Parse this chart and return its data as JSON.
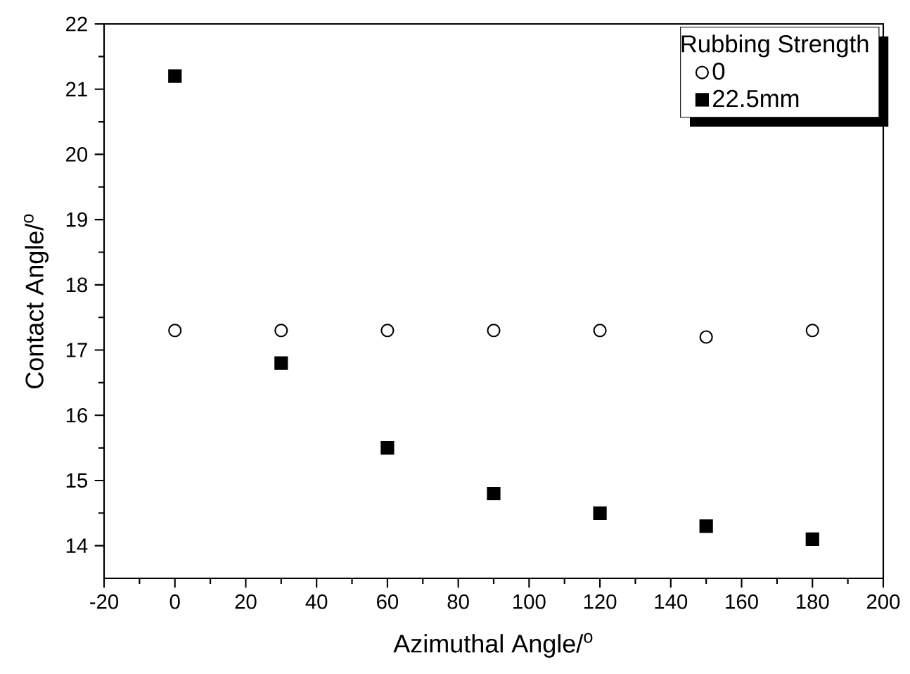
{
  "chart_data": {
    "type": "scatter",
    "xlabel": "Azimuthal Angle/$^{o}$",
    "ylabel": "Contact Angle/$^{o}$",
    "legend_title": "Rubbing Strength",
    "x": [
      0,
      30,
      60,
      90,
      120,
      150,
      180
    ],
    "series": [
      {
        "name": "0",
        "color": "#000000",
        "marker": "circle",
        "values": [
          17.3,
          17.3,
          17.3,
          17.3,
          17.3,
          17.2,
          17.3
        ]
      },
      {
        "name": "22.5mm",
        "color": "#000000",
        "marker": "square",
        "values": [
          21.2,
          16.8,
          15.5,
          14.8,
          14.5,
          14.3,
          14.1
        ]
      }
    ],
    "xlim": [
      -20,
      200
    ],
    "ylim": [
      13.5,
      22
    ],
    "xticks": [
      -20,
      0,
      20,
      40,
      60,
      80,
      100,
      120,
      140,
      160,
      180,
      200
    ],
    "yticks": [
      14,
      15,
      16,
      17,
      18,
      19,
      20,
      21,
      22
    ],
    "legend": "top right",
    "grid": false
  }
}
